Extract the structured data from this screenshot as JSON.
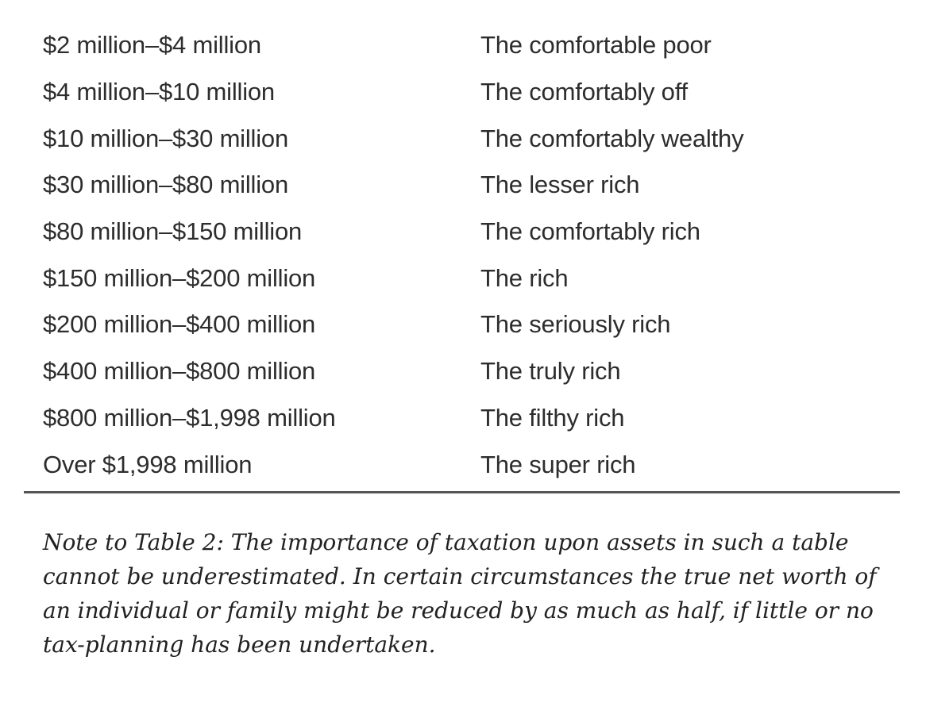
{
  "table": {
    "rows": [
      {
        "range": "$2 million–$4 million",
        "label": "The comfortable poor"
      },
      {
        "range": "$4 million–$10 million",
        "label": "The comfortably off"
      },
      {
        "range": "$10 million–$30 million",
        "label": "The comfortably wealthy"
      },
      {
        "range": "$30 million–$80 million",
        "label": "The lesser rich"
      },
      {
        "range": "$80 million–$150 million",
        "label": "The comfortably rich"
      },
      {
        "range": "$150 million–$200 million",
        "label": "The rich"
      },
      {
        "range": "$200 million–$400 million",
        "label": "The seriously rich"
      },
      {
        "range": "$400 million–$800 million",
        "label": "The truly rich"
      },
      {
        "range": "$800 million–$1,998 million",
        "label": "The filthy rich"
      },
      {
        "range": "Over $1,998 million",
        "label": "The super rich"
      }
    ]
  },
  "note": {
    "text": "Note to Table 2: The importance of taxation upon assets in such a table cannot be underestimated. In certain circumstances the true net worth of an individual or family might be reduced by as much as half, if little or no tax-planning has been undertaken."
  }
}
